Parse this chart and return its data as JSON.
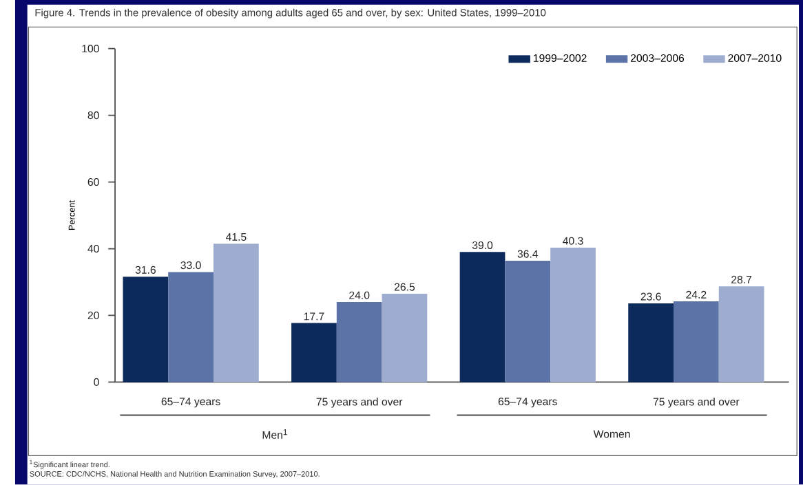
{
  "chart_data": {
    "type": "bar",
    "title": "Figure 4. Trends in the prevalence of obesity among adults aged 65 and over, by sex: United States, 1999–2010",
    "ylabel": "Percent",
    "categories": [
      "65–74 years",
      "75 years and over",
      "65–74 years",
      "75 years and over"
    ],
    "series": [
      {
        "name": "1999–2002",
        "color": "#0d2a5c",
        "values": [
          31.6,
          17.7,
          39.0,
          23.6
        ],
        "value_labels": [
          "31.6",
          "17.7",
          "39.0",
          "23.6"
        ]
      },
      {
        "name": "2003–2006",
        "color": "#5b73a6",
        "values": [
          33.0,
          24.0,
          36.4,
          24.2
        ],
        "value_labels": [
          "33.0",
          "24.0",
          "36.4",
          "24.2"
        ]
      },
      {
        "name": "2007–2010",
        "color": "#9eaccf",
        "values": [
          41.5,
          26.5,
          40.3,
          28.7
        ],
        "value_labels": [
          "41.5",
          "26.5",
          "40.3",
          "28.7"
        ]
      }
    ],
    "ylim": [
      0,
      100
    ],
    "yticks": [
      0,
      20,
      40,
      60,
      80,
      100
    ],
    "legend": "top right",
    "annotations": [
      "Men$^{1}$",
      "Women",
      "$^{1}$Significant linear trend.",
      "SOURCE: CDC/NCHS, National Health and Nutrition Examination Survey, 2007–2010."
    ]
  }
}
